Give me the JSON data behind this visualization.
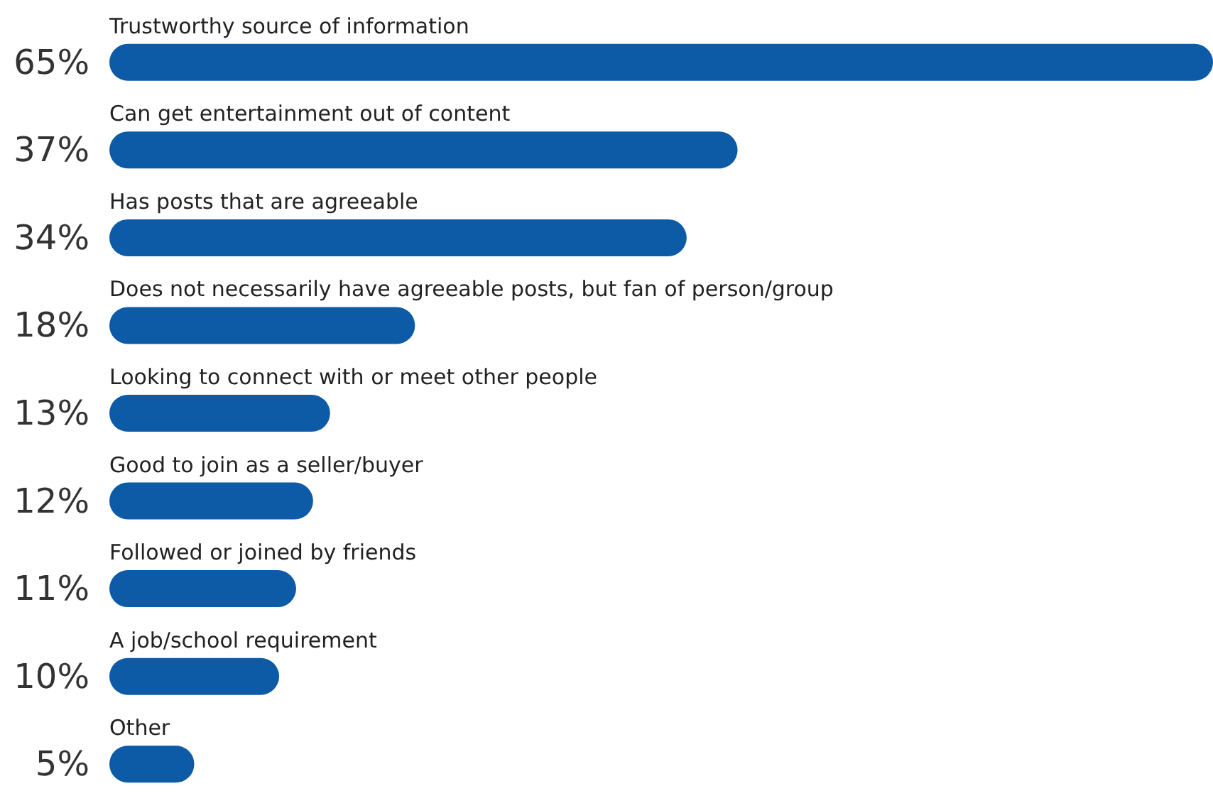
{
  "chart_data": {
    "type": "bar",
    "orientation": "horizontal",
    "categories": [
      "Trustworthy source of information",
      "Can get entertainment out of content",
      "Has posts that are agreeable",
      "Does not necessarily have agreeable posts, but fan of person/group",
      "Looking to connect with or meet other people",
      "Good to join as a seller/buyer",
      "Followed or joined by friends",
      "A job/school requirement",
      "Other"
    ],
    "values": [
      65,
      37,
      34,
      18,
      13,
      12,
      11,
      10,
      5
    ],
    "value_labels": [
      "65%",
      "37%",
      "34%",
      "18%",
      "13%",
      "12%",
      "11%",
      "10%",
      "5%"
    ],
    "color": "#0d5aa7"
  }
}
